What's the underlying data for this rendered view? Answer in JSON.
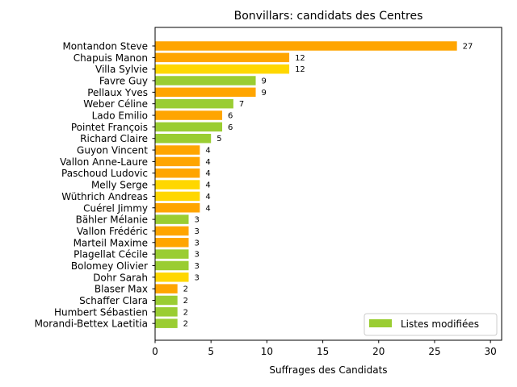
{
  "chart_data": {
    "type": "bar",
    "orientation": "horizontal",
    "title": "Bonvillars: candidats des Centres",
    "xlabel": "Suffrages des Candidats",
    "ylabel": "",
    "xlim": [
      0,
      31
    ],
    "xticks": [
      "0",
      "5",
      "10",
      "15",
      "20",
      "25",
      "30"
    ],
    "grid": false,
    "legend": {
      "placement": "lower-right",
      "label": "Listes modifiées",
      "color": "#9ACD32"
    },
    "colors": {
      "orange": "#FFA500",
      "yellow": "#FFD700",
      "green": "#9ACD32"
    },
    "bars": [
      {
        "name": "Montandon Steve",
        "value": 27,
        "color": "orange"
      },
      {
        "name": "Chapuis Manon",
        "value": 12,
        "color": "orange"
      },
      {
        "name": "Villa Sylvie",
        "value": 12,
        "color": "yellow"
      },
      {
        "name": "Favre Guy",
        "value": 9,
        "color": "green"
      },
      {
        "name": "Pellaux Yves",
        "value": 9,
        "color": "orange"
      },
      {
        "name": "Weber Céline",
        "value": 7,
        "color": "green"
      },
      {
        "name": "Lado Emilio",
        "value": 6,
        "color": "orange"
      },
      {
        "name": "Pointet François",
        "value": 6,
        "color": "green"
      },
      {
        "name": "Richard Claire",
        "value": 5,
        "color": "green"
      },
      {
        "name": "Guyon Vincent",
        "value": 4,
        "color": "orange"
      },
      {
        "name": "Vallon Anne-Laure",
        "value": 4,
        "color": "orange"
      },
      {
        "name": "Paschoud Ludovic",
        "value": 4,
        "color": "orange"
      },
      {
        "name": "Melly Serge",
        "value": 4,
        "color": "yellow"
      },
      {
        "name": "Wüthrich Andreas",
        "value": 4,
        "color": "yellow"
      },
      {
        "name": "Cuérel Jimmy",
        "value": 4,
        "color": "orange"
      },
      {
        "name": "Bähler Mélanie",
        "value": 3,
        "color": "green"
      },
      {
        "name": "Vallon Frédéric",
        "value": 3,
        "color": "orange"
      },
      {
        "name": "Marteil Maxime",
        "value": 3,
        "color": "orange"
      },
      {
        "name": "Plagellat Cécile",
        "value": 3,
        "color": "green"
      },
      {
        "name": "Bolomey Olivier",
        "value": 3,
        "color": "green"
      },
      {
        "name": "Dohr Sarah",
        "value": 3,
        "color": "yellow"
      },
      {
        "name": "Blaser Max",
        "value": 2,
        "color": "orange"
      },
      {
        "name": "Schaffer Clara",
        "value": 2,
        "color": "green"
      },
      {
        "name": "Humbert Sébastien",
        "value": 2,
        "color": "green"
      },
      {
        "name": "Morandi-Bettex Laetitia",
        "value": 2,
        "color": "green"
      }
    ]
  }
}
